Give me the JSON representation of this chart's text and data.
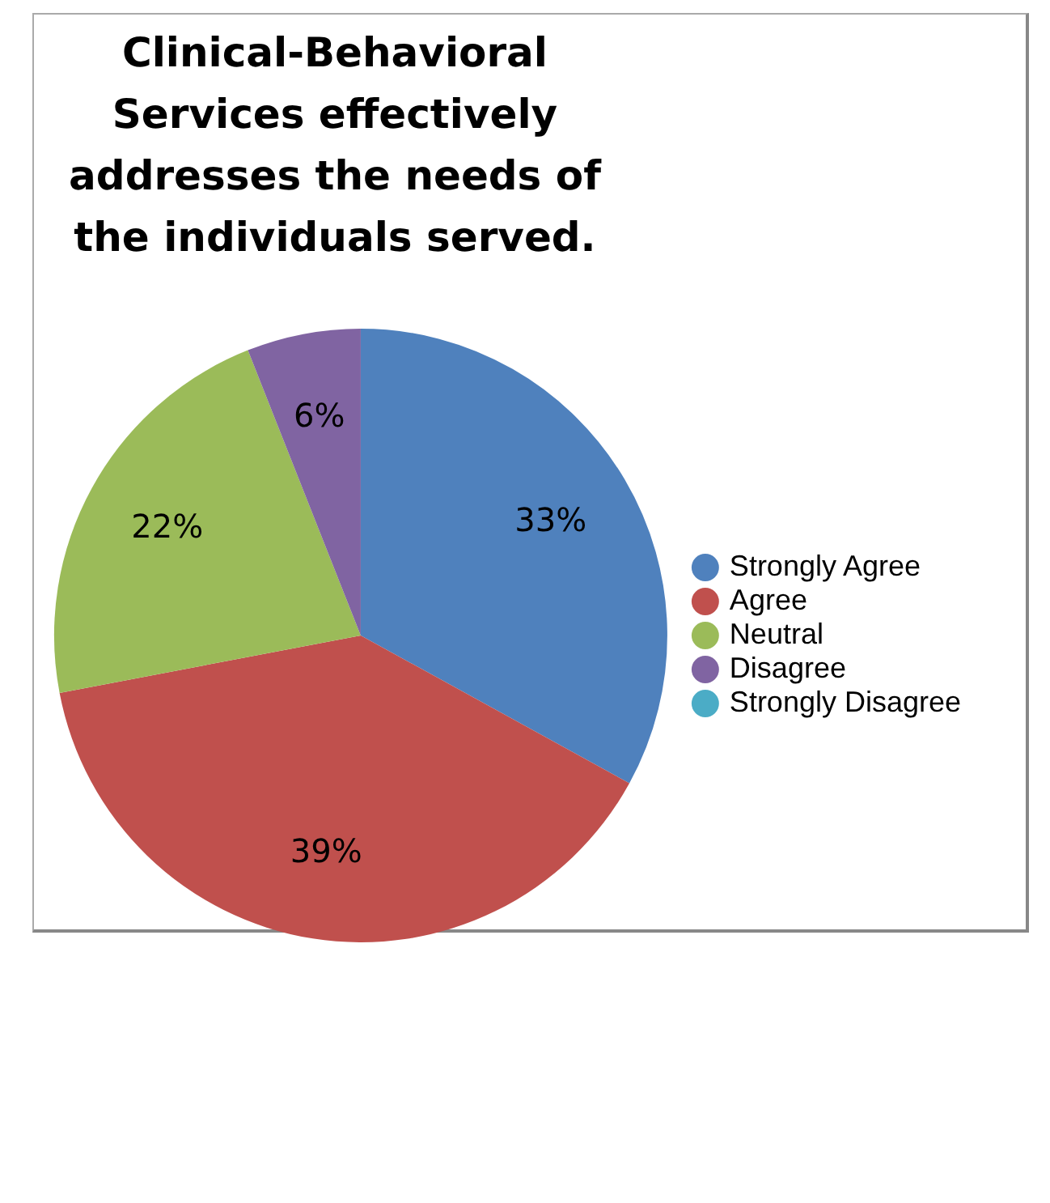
{
  "chart_data": {
    "type": "pie",
    "title": "Clinical-Behavioral Services effectively addresses the needs of the individuals served.",
    "categories": [
      "Strongly Agree",
      "Agree",
      "Neutral",
      "Disagree",
      "Strongly Disagree"
    ],
    "values": [
      33,
      39,
      22,
      6,
      0
    ],
    "colors": [
      "#4f81bd",
      "#c0504d",
      "#9bbb59",
      "#8064a2",
      "#4bacc6"
    ],
    "value_labels": [
      "33%",
      "39%",
      "22%",
      "6%",
      null
    ],
    "legend": "right"
  }
}
